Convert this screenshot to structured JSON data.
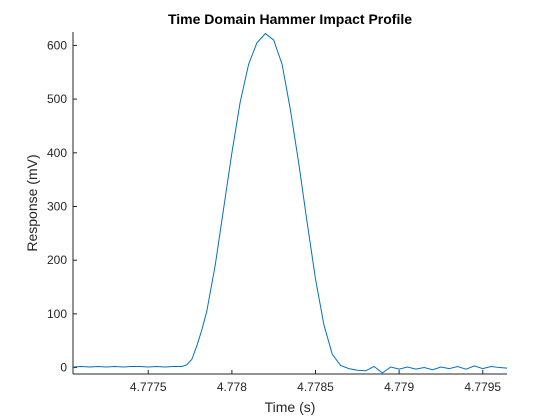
{
  "chart_data": {
    "type": "line",
    "title": "Time Domain Hammer Impact Profile",
    "xlabel": "Time (s)",
    "ylabel": "Response (mV)",
    "xlim": [
      4.77705,
      4.779645
    ],
    "ylim": [
      -12,
      625
    ],
    "xticks": [
      4.7775,
      4.778,
      4.7785,
      4.779,
      4.7795
    ],
    "xtick_labels": [
      "4.7775",
      "4.778",
      "4.7785",
      "4.779",
      "4.7795"
    ],
    "yticks": [
      0,
      100,
      200,
      300,
      400,
      500,
      600
    ],
    "ytick_labels": [
      "0",
      "100",
      "200",
      "300",
      "400",
      "500",
      "600"
    ],
    "grid": false,
    "line_color": "#0072BD",
    "series": [
      {
        "x": [
          4.77705,
          4.7771,
          4.77715,
          4.7772,
          4.77725,
          4.7773,
          4.77735,
          4.7774,
          4.77745,
          4.7775,
          4.77755,
          4.7776,
          4.77765,
          4.7777,
          4.77773,
          4.77776,
          4.77779,
          4.77782,
          4.77785,
          4.7779,
          4.77795,
          4.778,
          4.77805,
          4.7781,
          4.77815,
          4.7782,
          4.77825,
          4.7783,
          4.77835,
          4.7784,
          4.77845,
          4.7785,
          4.77855,
          4.7786,
          4.77865,
          4.7787,
          4.77875,
          4.7788,
          4.77885,
          4.7789,
          4.77895,
          4.779,
          4.77905,
          4.7791,
          4.77915,
          4.7792,
          4.77925,
          4.7793,
          4.77935,
          4.7794,
          4.77945,
          4.7795,
          4.77955,
          4.7796,
          4.779645
        ],
        "y": [
          1,
          2,
          1,
          2,
          1,
          2,
          1,
          2,
          2,
          1,
          2,
          1,
          2,
          2,
          5,
          15,
          40,
          70,
          105,
          190,
          295,
          400,
          495,
          565,
          605,
          622,
          610,
          565,
          480,
          380,
          270,
          165,
          80,
          25,
          4,
          -2,
          -5,
          -6,
          2,
          -10,
          1,
          -3,
          1,
          -3,
          0,
          -4,
          1,
          -2,
          2,
          -3,
          3,
          -2,
          2,
          0,
          -1
        ]
      }
    ]
  }
}
